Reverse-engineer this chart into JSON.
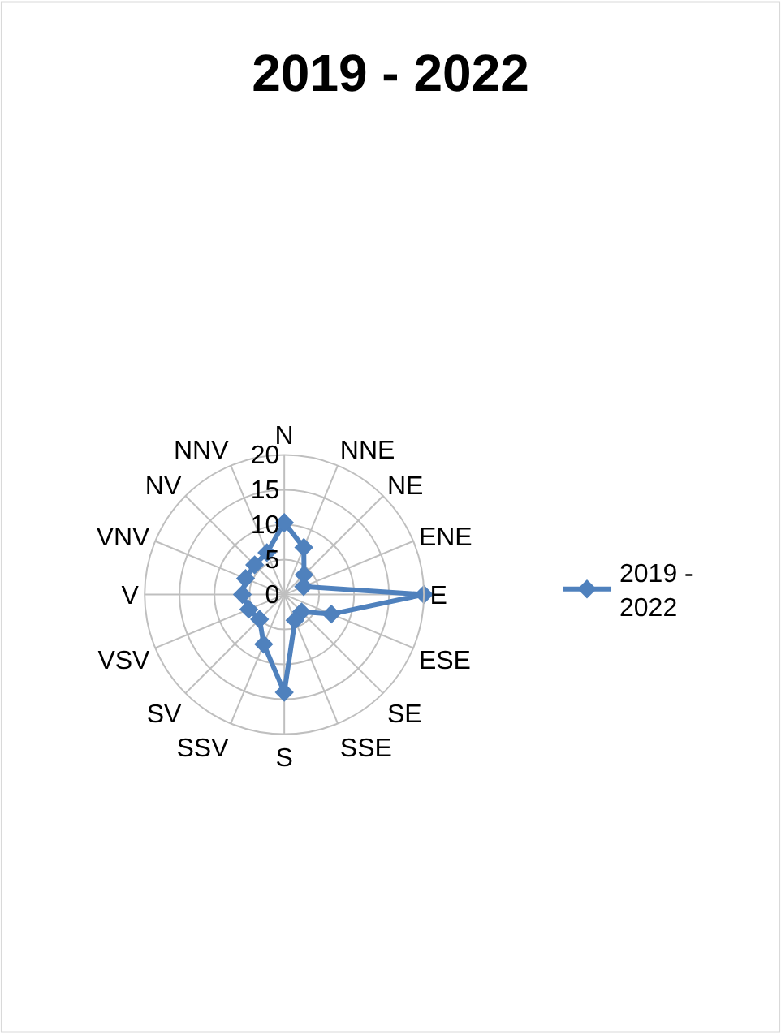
{
  "chart_data": {
    "type": "radar",
    "title": "2019 - 2022",
    "categories": [
      "N",
      "NNE",
      "NE",
      "ENE",
      "E",
      "ESE",
      "SE",
      "SSE",
      "S",
      "SSV",
      "SV",
      "VSV",
      "V",
      "VNV",
      "NV",
      "NNV"
    ],
    "series": [
      {
        "name": "2019 - 2022",
        "color": "#4f81bd",
        "values": [
          10.3,
          7.3,
          4,
          3,
          20,
          7.3,
          3.5,
          4,
          14,
          7.7,
          5,
          5.5,
          6,
          6,
          6,
          6.5
        ]
      }
    ],
    "ylim": [
      0,
      20
    ],
    "yticks": [
      0,
      5,
      10,
      15,
      20
    ],
    "marker": "diamond",
    "line_style": "solid",
    "legend": "right",
    "grid": true
  }
}
